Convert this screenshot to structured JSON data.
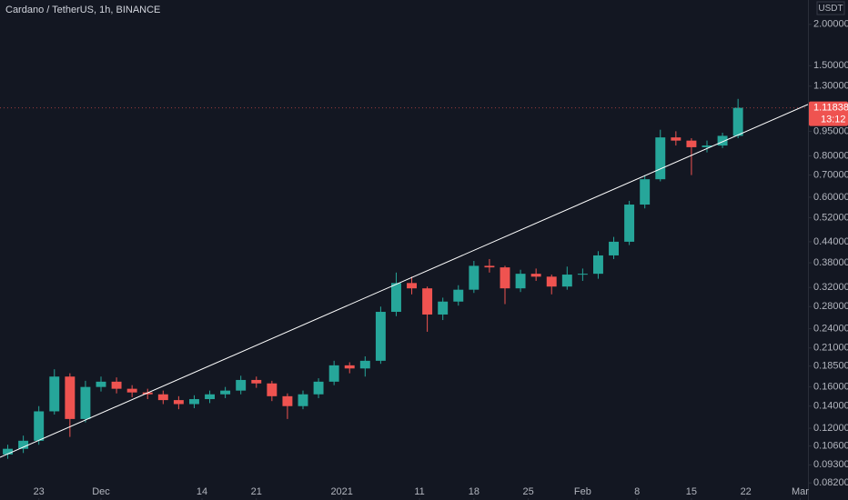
{
  "chart_data": {
    "type": "candlestick",
    "title": "Cardano / TetherUS, 1h, BINANCE",
    "currency": "USDT",
    "log_scale": true,
    "grid": false,
    "up_color": "#26a69a",
    "down_color": "#ef5350",
    "x": [
      "2020-11-18",
      "2020-11-20",
      "2020-11-22",
      "2020-11-24",
      "2020-11-26",
      "2020-11-28",
      "2020-11-30",
      "2020-12-02",
      "2020-12-04",
      "2020-12-06",
      "2020-12-08",
      "2020-12-10",
      "2020-12-12",
      "2020-12-14",
      "2020-12-16",
      "2020-12-18",
      "2020-12-20",
      "2020-12-22",
      "2020-12-24",
      "2020-12-26",
      "2020-12-28",
      "2020-12-30",
      "2021-01-01",
      "2021-01-03",
      "2021-01-05",
      "2021-01-07",
      "2021-01-09",
      "2021-01-11",
      "2021-01-13",
      "2021-01-15",
      "2021-01-17",
      "2021-01-19",
      "2021-01-21",
      "2021-01-23",
      "2021-01-25",
      "2021-01-27",
      "2021-01-29",
      "2021-01-31",
      "2021-02-02",
      "2021-02-04",
      "2021-02-06",
      "2021-02-08",
      "2021-02-10",
      "2021-02-12",
      "2021-02-14",
      "2021-02-16",
      "2021-02-18",
      "2021-02-20"
    ],
    "open": [
      0.1,
      0.104,
      0.11,
      0.135,
      0.172,
      0.128,
      0.16,
      0.166,
      0.158,
      0.154,
      0.152,
      0.146,
      0.142,
      0.147,
      0.152,
      0.156,
      0.168,
      0.164,
      0.15,
      0.14,
      0.152,
      0.166,
      0.186,
      0.182,
      0.192,
      0.27,
      0.33,
      0.318,
      0.265,
      0.29,
      0.315,
      0.372,
      0.368,
      0.318,
      0.352,
      0.345,
      0.322,
      0.35,
      0.352,
      0.4,
      0.44,
      0.57,
      0.68,
      0.91,
      0.89,
      0.85,
      0.86,
      0.92
    ],
    "high": [
      0.107,
      0.114,
      0.14,
      0.181,
      0.176,
      0.167,
      0.172,
      0.171,
      0.162,
      0.158,
      0.156,
      0.15,
      0.151,
      0.156,
      0.16,
      0.173,
      0.172,
      0.167,
      0.153,
      0.156,
      0.17,
      0.192,
      0.19,
      0.198,
      0.28,
      0.355,
      0.345,
      0.322,
      0.298,
      0.325,
      0.385,
      0.39,
      0.372,
      0.362,
      0.365,
      0.35,
      0.37,
      0.365,
      0.412,
      0.455,
      0.585,
      0.7,
      0.96,
      0.95,
      0.905,
      0.89,
      0.94,
      1.19
    ],
    "low": [
      0.097,
      0.101,
      0.107,
      0.132,
      0.113,
      0.125,
      0.155,
      0.153,
      0.149,
      0.147,
      0.142,
      0.137,
      0.138,
      0.143,
      0.148,
      0.152,
      0.159,
      0.145,
      0.128,
      0.137,
      0.148,
      0.162,
      0.176,
      0.172,
      0.188,
      0.262,
      0.305,
      0.235,
      0.255,
      0.282,
      0.308,
      0.355,
      0.285,
      0.31,
      0.335,
      0.305,
      0.315,
      0.335,
      0.34,
      0.39,
      0.43,
      0.555,
      0.67,
      0.86,
      0.7,
      0.82,
      0.845,
      0.905
    ],
    "close": [
      0.104,
      0.11,
      0.135,
      0.172,
      0.128,
      0.16,
      0.166,
      0.158,
      0.154,
      0.152,
      0.146,
      0.142,
      0.147,
      0.152,
      0.156,
      0.168,
      0.164,
      0.15,
      0.14,
      0.152,
      0.166,
      0.186,
      0.182,
      0.192,
      0.27,
      0.33,
      0.318,
      0.265,
      0.29,
      0.315,
      0.372,
      0.368,
      0.318,
      0.352,
      0.345,
      0.322,
      0.35,
      0.352,
      0.4,
      0.44,
      0.57,
      0.68,
      0.91,
      0.89,
      0.85,
      0.86,
      0.92,
      1.11838
    ],
    "last_price": 1.11838,
    "countdown": "13:12",
    "trendline": {
      "color": "#ffffff",
      "x": [
        "2020-11-18",
        "2021-03-02"
      ],
      "values": [
        0.098,
        1.145
      ]
    },
    "xlim": [
      "2020-11-18",
      "2021-03-02"
    ],
    "ylim": [
      0.0728,
      2.37
    ],
    "xticks": [
      {
        "value": "2020-11-23",
        "label": "23"
      },
      {
        "value": "2020-12-01",
        "label": "Dec"
      },
      {
        "value": "2020-12-14",
        "label": "14"
      },
      {
        "value": "2020-12-21",
        "label": "21"
      },
      {
        "value": "2021-01-01",
        "label": "2021"
      },
      {
        "value": "2021-01-11",
        "label": "11"
      },
      {
        "value": "2021-01-18",
        "label": "18"
      },
      {
        "value": "2021-01-25",
        "label": "25"
      },
      {
        "value": "2021-02-01",
        "label": "Feb"
      },
      {
        "value": "2021-02-08",
        "label": "8"
      },
      {
        "value": "2021-02-15",
        "label": "15"
      },
      {
        "value": "2021-02-22",
        "label": "22"
      },
      {
        "value": "2021-03-01",
        "label": "Mar"
      }
    ],
    "yticks": [
      {
        "value": 2.0,
        "label": "2.00000"
      },
      {
        "value": 1.5,
        "label": "1.50000"
      },
      {
        "value": 1.3,
        "label": "1.30000"
      },
      {
        "value": 0.95,
        "label": "0.95000"
      },
      {
        "value": 0.8,
        "label": "0.80000"
      },
      {
        "value": 0.7,
        "label": "0.70000"
      },
      {
        "value": 0.6,
        "label": "0.60000"
      },
      {
        "value": 0.52,
        "label": "0.52000"
      },
      {
        "value": 0.44,
        "label": "0.44000"
      },
      {
        "value": 0.38,
        "label": "0.38000"
      },
      {
        "value": 0.32,
        "label": "0.32000"
      },
      {
        "value": 0.28,
        "label": "0.28000"
      },
      {
        "value": 0.24,
        "label": "0.24000"
      },
      {
        "value": 0.21,
        "label": "0.21000"
      },
      {
        "value": 0.185,
        "label": "0.18500"
      },
      {
        "value": 0.16,
        "label": "0.16000"
      },
      {
        "value": 0.14,
        "label": "0.14000"
      },
      {
        "value": 0.12,
        "label": "0.12000"
      },
      {
        "value": 0.106,
        "label": "0.10600"
      },
      {
        "value": 0.093,
        "label": "0.09300"
      },
      {
        "value": 0.082,
        "label": "0.08200"
      }
    ]
  }
}
